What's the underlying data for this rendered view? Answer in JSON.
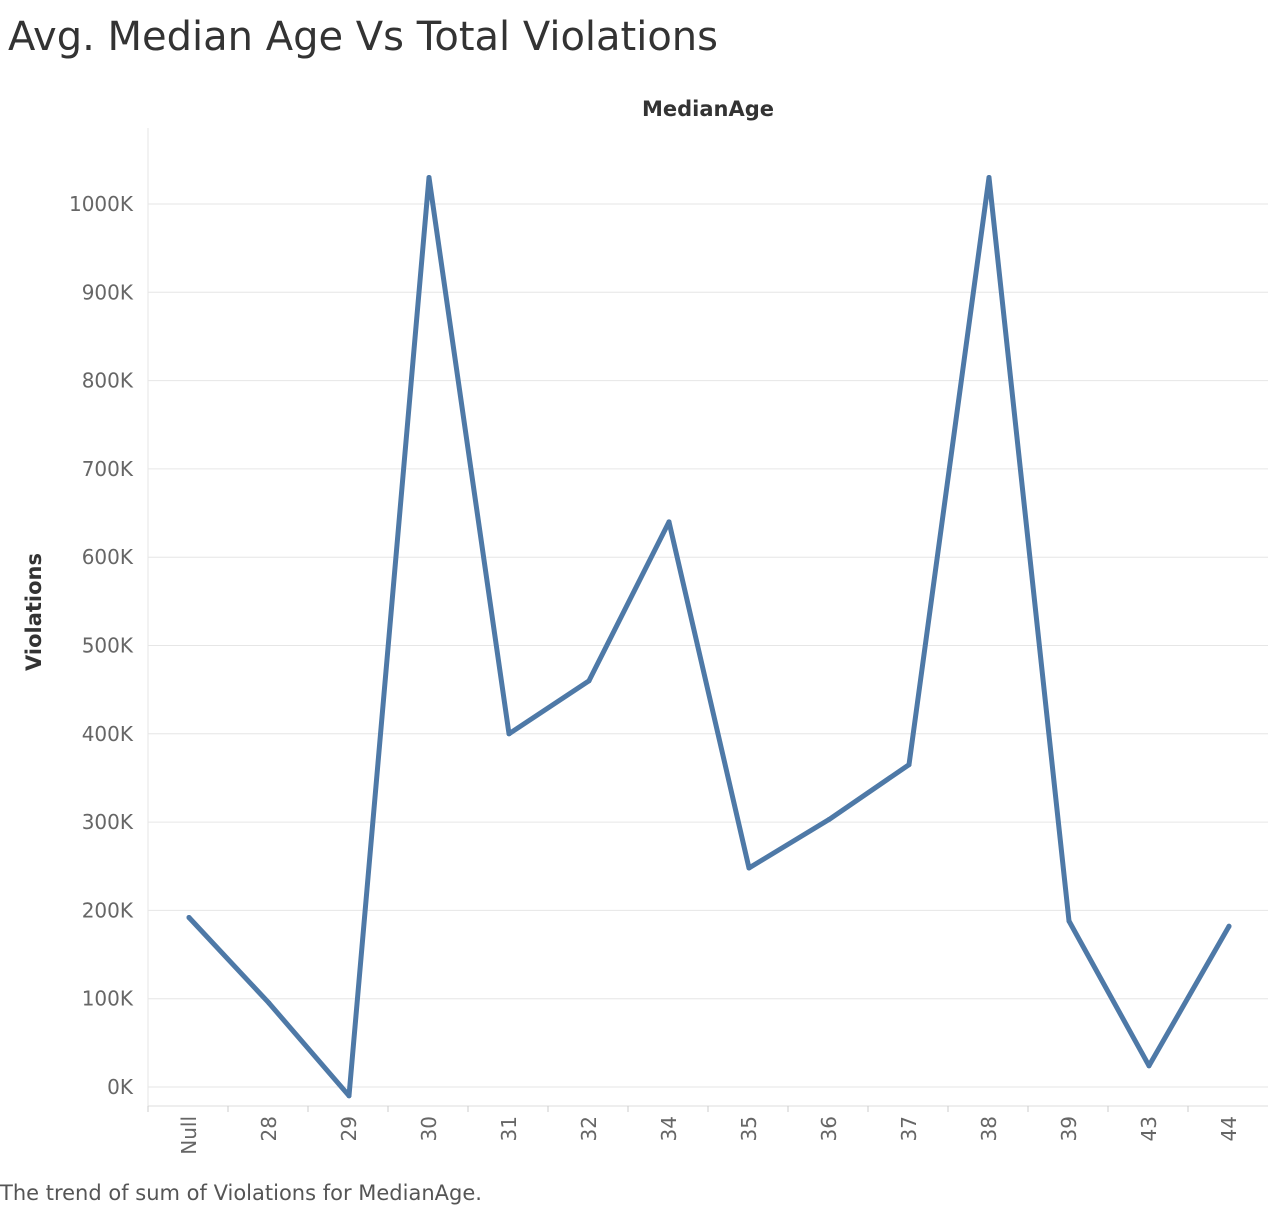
{
  "page_title": "Avg. Median Age Vs Total Violations",
  "caption": "The trend of sum of Violations for MedianAge.",
  "colors": {
    "line": "#4e79a7",
    "grid": "#e6e6e6",
    "text": "#333333",
    "tick": "#666666"
  },
  "chart_data": {
    "type": "line",
    "title": "Avg. Median Age Vs Total Violations",
    "xlabel": "MedianAge",
    "ylabel": "Violations",
    "categories": [
      "Null",
      "28",
      "29",
      "30",
      "31",
      "32",
      "34",
      "35",
      "36",
      "37",
      "38",
      "39",
      "43",
      "44"
    ],
    "series": [
      {
        "name": "Violations",
        "values": [
          192000,
          95000,
          -10000,
          1030000,
          400000,
          460000,
          640000,
          248000,
          303000,
          365000,
          1030000,
          188000,
          24000,
          182000
        ]
      }
    ],
    "ylim": [
      -20000,
      1085000
    ],
    "yticks": [
      0,
      100000,
      200000,
      300000,
      400000,
      500000,
      600000,
      700000,
      800000,
      900000,
      1000000
    ],
    "ytick_labels": [
      "0K",
      "100K",
      "200K",
      "300K",
      "400K",
      "500K",
      "600K",
      "700K",
      "800K",
      "900K",
      "1000K"
    ],
    "grid": true
  }
}
